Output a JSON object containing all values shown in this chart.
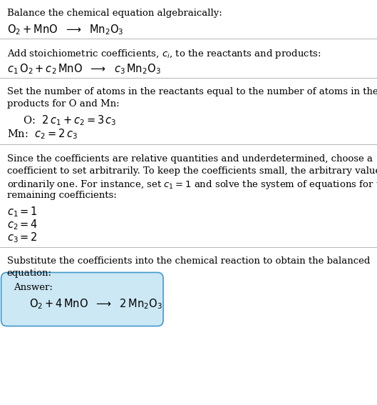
{
  "title": "Balance the chemical equation algebraically:",
  "equation_line": "$\\mathrm{O_2 + MnO}$  $\\longrightarrow$  $\\mathrm{Mn_2O_3}$",
  "section2_header": "Add stoichiometric coefficients, $c_i$, to the reactants and products:",
  "section2_eq": "$c_1\\,\\mathrm{O_2} + c_2\\,\\mathrm{MnO}$  $\\longrightarrow$  $c_3\\,\\mathrm{Mn_2O_3}$",
  "section3_line1": "Set the number of atoms in the reactants equal to the number of atoms in the",
  "section3_line2": "products for O and Mn:",
  "section3_O": "  O:  $2\\,c_1 + c_2 = 3\\,c_3$",
  "section3_Mn": "Mn:  $c_2 = 2\\,c_3$",
  "section4_line1": "Since the coefficients are relative quantities and underdetermined, choose a",
  "section4_line2": "coefficient to set arbitrarily. To keep the coefficients small, the arbitrary value is",
  "section4_line3": "ordinarily one. For instance, set $c_1 = 1$ and solve the system of equations for the",
  "section4_line4": "remaining coefficients:",
  "section4_c1": "$c_1 = 1$",
  "section4_c2": "$c_2 = 4$",
  "section4_c3": "$c_3 = 2$",
  "section5_line1": "Substitute the coefficients into the chemical reaction to obtain the balanced",
  "section5_line2": "equation:",
  "answer_label": "Answer:",
  "answer_eq": "$\\mathrm{O_2} + 4\\,\\mathrm{MnO}$  $\\longrightarrow$  $2\\,\\mathrm{Mn_2O_3}$",
  "bg_color": "#ffffff",
  "text_color": "#000000",
  "separator_color": "#aaaaaa",
  "answer_box_fill": "#cce8f4",
  "answer_box_edge": "#4499cc",
  "fs_body": 9.5,
  "fs_math": 10.5
}
